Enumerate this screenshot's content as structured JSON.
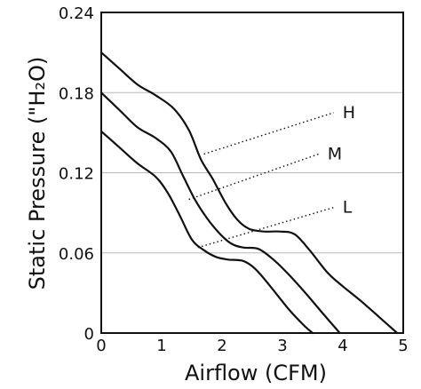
{
  "chart_data": {
    "type": "line",
    "title": "",
    "xlabel": "Airflow (CFM)",
    "ylabel": "Static Pressure (\"H₂O)",
    "xlim": [
      0,
      5
    ],
    "ylim": [
      0,
      0.24
    ],
    "x_ticks": [
      "0",
      "1",
      "2",
      "3",
      "4",
      "5"
    ],
    "y_ticks": [
      "0",
      "0.06",
      "0.12",
      "0.18",
      "0.24"
    ],
    "grid": "horizontal",
    "series": [
      {
        "name": "H",
        "points": [
          [
            0,
            0.21
          ],
          [
            0.3,
            0.198
          ],
          [
            0.6,
            0.186
          ],
          [
            0.9,
            0.178
          ],
          [
            1.2,
            0.168
          ],
          [
            1.45,
            0.152
          ],
          [
            1.65,
            0.13
          ],
          [
            1.85,
            0.115
          ],
          [
            2.05,
            0.098
          ],
          [
            2.25,
            0.085
          ],
          [
            2.45,
            0.078
          ],
          [
            2.7,
            0.076
          ],
          [
            2.95,
            0.076
          ],
          [
            3.2,
            0.074
          ],
          [
            3.45,
            0.062
          ],
          [
            3.75,
            0.045
          ],
          [
            4.0,
            0.035
          ],
          [
            4.3,
            0.024
          ],
          [
            4.6,
            0.012
          ],
          [
            4.9,
            0.0
          ]
        ],
        "annotation": {
          "label": "H",
          "anchor": [
            1.7,
            0.134
          ],
          "text_at": [
            3.85,
            0.165
          ]
        }
      },
      {
        "name": "M",
        "points": [
          [
            0,
            0.18
          ],
          [
            0.3,
            0.167
          ],
          [
            0.6,
            0.154
          ],
          [
            0.9,
            0.146
          ],
          [
            1.15,
            0.136
          ],
          [
            1.35,
            0.118
          ],
          [
            1.55,
            0.1
          ],
          [
            1.75,
            0.086
          ],
          [
            1.95,
            0.075
          ],
          [
            2.15,
            0.067
          ],
          [
            2.35,
            0.064
          ],
          [
            2.6,
            0.063
          ],
          [
            2.85,
            0.055
          ],
          [
            3.1,
            0.044
          ],
          [
            3.4,
            0.029
          ],
          [
            3.7,
            0.013
          ],
          [
            3.95,
            0.0
          ]
        ],
        "annotation": {
          "label": "M",
          "anchor": [
            1.45,
            0.1
          ],
          "text_at": [
            3.6,
            0.134
          ]
        }
      },
      {
        "name": "L",
        "points": [
          [
            0,
            0.151
          ],
          [
            0.3,
            0.139
          ],
          [
            0.6,
            0.127
          ],
          [
            0.9,
            0.117
          ],
          [
            1.1,
            0.105
          ],
          [
            1.3,
            0.088
          ],
          [
            1.5,
            0.07
          ],
          [
            1.7,
            0.062
          ],
          [
            1.9,
            0.057
          ],
          [
            2.1,
            0.055
          ],
          [
            2.35,
            0.054
          ],
          [
            2.55,
            0.048
          ],
          [
            2.8,
            0.035
          ],
          [
            3.1,
            0.018
          ],
          [
            3.35,
            0.006
          ],
          [
            3.5,
            0.0
          ]
        ],
        "annotation": {
          "label": "L",
          "anchor": [
            1.6,
            0.064
          ],
          "text_at": [
            3.85,
            0.094
          ]
        }
      }
    ]
  }
}
